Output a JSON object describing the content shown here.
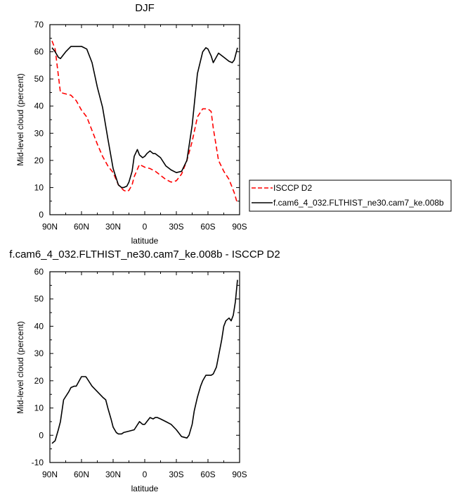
{
  "chart_data": [
    {
      "type": "line",
      "title": "DJF",
      "xlabel": "latitude",
      "ylabel": "Mid-level cloud (percent)",
      "xlim": [
        90,
        -90
      ],
      "ylim": [
        0,
        70
      ],
      "x_ticks": [
        90,
        60,
        30,
        0,
        -30,
        -60,
        -90
      ],
      "x_tick_labels": [
        "90N",
        "60N",
        "30N",
        "0",
        "30S",
        "60S",
        "90S"
      ],
      "y_ticks": [
        0,
        10,
        20,
        30,
        40,
        50,
        60,
        70
      ],
      "y_tick_labels": [
        "0",
        "10",
        "20",
        "30",
        "40",
        "50",
        "60",
        "70"
      ],
      "legend_position": "right",
      "series": [
        {
          "name": "ISCCP D2",
          "color": "#ff0000",
          "dash": "dashed",
          "x": [
            88,
            85,
            80,
            75,
            70,
            65,
            60,
            55,
            50,
            45,
            40,
            35,
            30,
            25,
            20,
            17,
            15,
            12,
            10,
            5,
            0,
            -5,
            -10,
            -15,
            -20,
            -25,
            -30,
            -35,
            -40,
            -45,
            -50,
            -55,
            -60,
            -63,
            -65,
            -70,
            -75,
            -80,
            -85,
            -88
          ],
          "y": [
            64,
            61,
            45,
            44.5,
            44,
            42,
            38.5,
            36,
            31,
            26,
            21.5,
            18,
            15.5,
            11,
            9,
            8.5,
            9,
            11,
            14,
            18.5,
            17.5,
            17,
            16,
            14.5,
            13,
            12,
            12.5,
            15,
            20,
            27,
            36,
            39,
            39,
            38,
            32,
            20,
            16,
            13,
            8,
            4
          ]
        },
        {
          "name": "f.cam6_4_032.FLTHIST_ne30.cam7_ke.008b",
          "color": "#000000",
          "dash": "solid",
          "x": [
            88,
            85,
            82,
            80,
            75,
            70,
            65,
            60,
            55,
            50,
            45,
            40,
            35,
            30,
            25,
            22,
            20,
            17,
            15,
            12,
            10,
            7,
            5,
            2,
            0,
            -2,
            -5,
            -8,
            -10,
            -15,
            -20,
            -25,
            -30,
            -35,
            -40,
            -45,
            -50,
            -55,
            -58,
            -60,
            -63,
            -65,
            -70,
            -75,
            -80,
            -83,
            -85,
            -88
          ],
          "y": [
            61.5,
            60,
            58,
            57.5,
            60,
            62,
            62,
            62,
            61,
            56,
            47,
            39.5,
            28,
            17,
            11,
            10,
            10,
            10.5,
            12,
            16,
            21.5,
            24,
            22,
            21,
            21.5,
            22.5,
            23.5,
            22.5,
            22.5,
            21,
            18,
            16.5,
            15.5,
            16,
            20,
            33,
            52,
            60,
            61.5,
            61,
            58.5,
            56,
            59.5,
            58,
            56.5,
            56,
            57,
            61.5
          ]
        }
      ]
    },
    {
      "type": "line",
      "title": "f.cam6_4_032.FLTHIST_ne30.cam7_ke.008b - ISCCP D2",
      "xlabel": "latitude",
      "ylabel": "Mid-level cloud (percent)",
      "xlim": [
        90,
        -90
      ],
      "ylim": [
        -10,
        60
      ],
      "x_ticks": [
        90,
        60,
        30,
        0,
        -30,
        -60,
        -90
      ],
      "x_tick_labels": [
        "90N",
        "60N",
        "30N",
        "0",
        "30S",
        "60S",
        "90S"
      ],
      "y_ticks": [
        -10,
        0,
        10,
        20,
        30,
        40,
        50,
        60
      ],
      "y_tick_labels": [
        "-10",
        "0",
        "10",
        "20",
        "30",
        "40",
        "50",
        "60"
      ],
      "series": [
        {
          "color": "#000000",
          "dash": "solid",
          "x": [
            88,
            85,
            82,
            80,
            77,
            72,
            70,
            67,
            65,
            60,
            56,
            55,
            50,
            45,
            40,
            37,
            35,
            32,
            30,
            27,
            25,
            22,
            20,
            15,
            10,
            5,
            2,
            0,
            -3,
            -5,
            -8,
            -10,
            -12,
            -15,
            -20,
            -25,
            -30,
            -35,
            -40,
            -42,
            -45,
            -47,
            -50,
            -53,
            -55,
            -58,
            -60,
            -63,
            -65,
            -68,
            -70,
            -73,
            -75,
            -77,
            -80,
            -82,
            -84,
            -86,
            -88
          ],
          "y": [
            -3,
            -2,
            2,
            5,
            13,
            16,
            17.5,
            18,
            18,
            21.5,
            21.5,
            21,
            18,
            16,
            14,
            13,
            10,
            6,
            3,
            1,
            0.5,
            0.5,
            1,
            1.5,
            2,
            5,
            4,
            4,
            5.5,
            6.5,
            6,
            6.5,
            6.5,
            6,
            5,
            4,
            2,
            -0.5,
            -1,
            0,
            4,
            9,
            14,
            18,
            20,
            22,
            22,
            22,
            22.5,
            25,
            29,
            35,
            40,
            42,
            43,
            42,
            44,
            49,
            57
          ]
        }
      ]
    }
  ]
}
